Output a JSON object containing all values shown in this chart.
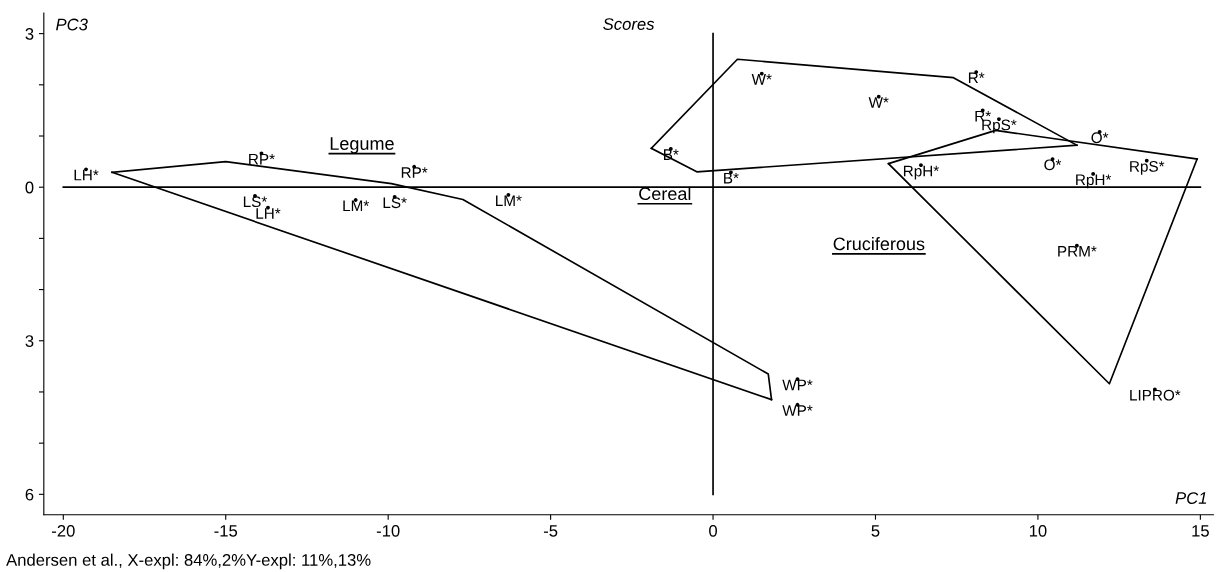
{
  "chart_data": {
    "type": "scatter",
    "title": "Scores",
    "xlabel": "PC1",
    "ylabel": "PC3",
    "xlim": [
      -20.6,
      15.4
    ],
    "ylim": [
      -6.4,
      3.4
    ],
    "xticks": [
      -20,
      -15,
      -10,
      -5,
      0,
      5,
      10,
      15
    ],
    "yticks": [
      {
        "value": 3,
        "label": "3"
      },
      {
        "value": 2,
        "label": null
      },
      {
        "value": 1,
        "label": null
      },
      {
        "value": 0,
        "label": "0"
      },
      {
        "value": -1,
        "label": null
      },
      {
        "value": -2,
        "label": null
      },
      {
        "value": -3,
        "label": "3"
      },
      {
        "value": -4,
        "label": null
      },
      {
        "value": -5,
        "label": null
      },
      {
        "value": -6,
        "label": "6"
      }
    ],
    "grid": false,
    "legend": false,
    "series": [
      {
        "color": "#000000",
        "marker": "circle",
        "x": [
          -19.3,
          -13.9,
          -14.1,
          -13.7,
          -11.0,
          -9.8,
          -9.2,
          -6.3,
          2.6,
          2.6
        ],
        "values": [
          0.35,
          0.66,
          -0.17,
          -0.4,
          -0.25,
          -0.19,
          0.4,
          -0.15,
          -3.75,
          -4.25
        ],
        "value_labels": [
          "LH*",
          "RP*",
          "LS*",
          "LH*",
          "LM*",
          "LS*",
          "RP*",
          "LM*",
          "WP*",
          "WP*"
        ]
      },
      {
        "color": "#000000",
        "marker": "circle",
        "x": [
          1.5,
          5.1,
          8.1,
          8.3,
          -1.3,
          0.55
        ],
        "values": [
          2.22,
          1.77,
          2.25,
          1.5,
          0.75,
          0.29
        ],
        "value_labels": [
          "W*",
          "W*",
          "R*",
          "R*",
          "B*",
          "B*"
        ]
      },
      {
        "color": "#000000",
        "marker": "circle",
        "x": [
          8.8,
          10.45,
          11.9,
          13.35,
          11.7,
          6.4,
          11.2,
          13.6
        ],
        "values": [
          1.33,
          0.55,
          1.08,
          0.52,
          0.26,
          0.43,
          -1.14,
          -3.95
        ],
        "value_labels": [
          "RpS*",
          "O*",
          "O*",
          "RpS*",
          "RpH*",
          "RpH*",
          "PRM*",
          "LIPRO*"
        ]
      },
      {
        "type": "line",
        "color": "#000000",
        "x": [
          -18.5,
          -15.0,
          -9.9,
          -7.7,
          1.7,
          1.8
        ],
        "values": [
          0.29,
          0.5,
          0.07,
          -0.24,
          -3.65,
          -4.15
        ]
      },
      {
        "type": "line",
        "color": "#000000",
        "x": [
          -18.5,
          1.8
        ],
        "values": [
          0.29,
          -4.15
        ]
      },
      {
        "type": "line",
        "color": "#000000",
        "x": [
          -1.9,
          0.75,
          7.4,
          11.2
        ],
        "values": [
          0.76,
          2.5,
          2.14,
          0.82
        ]
      },
      {
        "type": "line",
        "color": "#000000",
        "x": [
          -1.9,
          -0.5,
          11.2
        ],
        "values": [
          0.76,
          0.3,
          0.82
        ]
      },
      {
        "type": "line",
        "color": "#000000",
        "x": [
          5.4,
          8.7,
          14.9
        ],
        "values": [
          0.46,
          1.11,
          0.55
        ]
      },
      {
        "type": "line",
        "color": "#000000",
        "x": [
          5.4,
          12.2,
          14.9
        ],
        "values": [
          0.46,
          -3.84,
          0.55
        ]
      },
      {
        "type": "line",
        "color": "#000000",
        "x": [
          -20,
          15
        ],
        "values": [
          0,
          0
        ]
      },
      {
        "type": "line",
        "color": "#000000",
        "x": [
          0,
          0
        ],
        "values": [
          3,
          -6
        ]
      }
    ],
    "annotations": [
      "Legume",
      "Cereal",
      "Cruciferous",
      "Andersen et al., X-expl: 84%,2%Y-expl: 11%,13%"
    ]
  }
}
